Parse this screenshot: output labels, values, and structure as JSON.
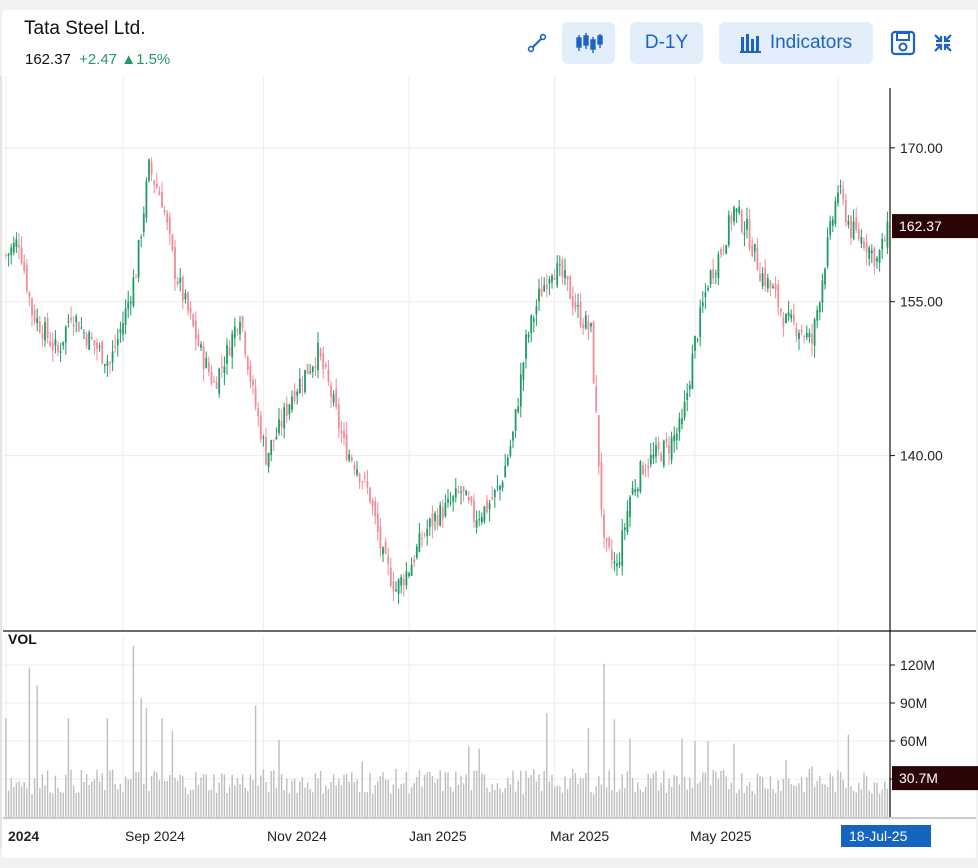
{
  "header": {
    "title": "Tata Steel Ltd.",
    "price": "162.37",
    "change": "+2.47",
    "change_pct": "1.5%",
    "change_color": "#1f9a64"
  },
  "toolbar": {
    "draw_icon": "line-draw-icon",
    "chart_type_icon": "candlestick-icon",
    "period_label": "D-1Y",
    "indicators_label": "Indicators",
    "save_icon": "save-icon",
    "collapse_icon": "collapse-icon"
  },
  "chart_data": [
    {
      "type": "candlestick",
      "title": "",
      "x_tick_labels": [
        "2024",
        "Sep 2024",
        "Nov 2024",
        "Jan 2025",
        "Mar 2025",
        "May 2025"
      ],
      "cursor_date_label": "18-Jul-25",
      "y_ticks": [
        140,
        155,
        170
      ],
      "y_tick_labels": [
        "140.00",
        "155.00",
        "170.00"
      ],
      "ylim": [
        123,
        177
      ],
      "last_price_label": "162.37",
      "last_price": 162.37,
      "up_color": "#1f9a64",
      "down_color": "#ee8c99",
      "grid": true,
      "close_path": [
        [
          0,
          159.5
        ],
        [
          5,
          161
        ],
        [
          10,
          154
        ],
        [
          15,
          152
        ],
        [
          20,
          150
        ],
        [
          25,
          154
        ],
        [
          30,
          152
        ],
        [
          35,
          150.5
        ],
        [
          40,
          149
        ],
        [
          45,
          153
        ],
        [
          50,
          158
        ],
        [
          55,
          168
        ],
        [
          60,
          165
        ],
        [
          65,
          158
        ],
        [
          70,
          154
        ],
        [
          75,
          150
        ],
        [
          80,
          147
        ],
        [
          85,
          150
        ],
        [
          90,
          154
        ],
        [
          95,
          146
        ],
        [
          100,
          140
        ],
        [
          105,
          142.5
        ],
        [
          110,
          146
        ],
        [
          115,
          148
        ],
        [
          120,
          150
        ],
        [
          125,
          146
        ],
        [
          130,
          141
        ],
        [
          135,
          139
        ],
        [
          140,
          136
        ],
        [
          145,
          130
        ],
        [
          150,
          127
        ],
        [
          155,
          129
        ],
        [
          160,
          132
        ],
        [
          165,
          134
        ],
        [
          170,
          135
        ],
        [
          175,
          136.5
        ],
        [
          180,
          134
        ],
        [
          185,
          135
        ],
        [
          190,
          137
        ],
        [
          195,
          142
        ],
        [
          200,
          151
        ],
        [
          205,
          155.5
        ],
        [
          210,
          158.5
        ],
        [
          215,
          157
        ],
        [
          220,
          154
        ],
        [
          225,
          152
        ],
        [
          230,
          131
        ],
        [
          235,
          129
        ],
        [
          240,
          136
        ],
        [
          245,
          139
        ],
        [
          250,
          140
        ],
        [
          255,
          141
        ],
        [
          260,
          143
        ],
        [
          265,
          151
        ],
        [
          270,
          157
        ],
        [
          275,
          160
        ],
        [
          280,
          164
        ],
        [
          285,
          162
        ],
        [
          290,
          158
        ],
        [
          295,
          156
        ],
        [
          300,
          153
        ],
        [
          305,
          152.5
        ],
        [
          310,
          151
        ],
        [
          315,
          159
        ],
        [
          320,
          166
        ],
        [
          325,
          162
        ],
        [
          330,
          161
        ],
        [
          335,
          159
        ],
        [
          340,
          162.4
        ]
      ],
      "volume": {
        "label": "VOL",
        "unit": "M",
        "y_ticks": [
          30,
          60,
          90,
          120
        ],
        "y_tick_labels": [
          "30M",
          "60M",
          "90M",
          "120M"
        ],
        "ylim": [
          0,
          135
        ],
        "last_label": "30.7M",
        "last_value": 30.7,
        "bar_color": "#bdbdbd",
        "spikes": [
          [
            0,
            78
          ],
          [
            9,
            118
          ],
          [
            12,
            104
          ],
          [
            24,
            78
          ],
          [
            39,
            78
          ],
          [
            49,
            135
          ],
          [
            52,
            94
          ],
          [
            54,
            86
          ],
          [
            60,
            78
          ],
          [
            64,
            68
          ],
          [
            96,
            88
          ],
          [
            105,
            61
          ],
          [
            137,
            44
          ],
          [
            178,
            56
          ],
          [
            182,
            54
          ],
          [
            208,
            82
          ],
          [
            224,
            70
          ],
          [
            230,
            121
          ],
          [
            234,
            77
          ],
          [
            240,
            62
          ],
          [
            260,
            62
          ],
          [
            265,
            60
          ],
          [
            270,
            60
          ],
          [
            280,
            58
          ],
          [
            300,
            45
          ],
          [
            310,
            40
          ],
          [
            324,
            65
          ]
        ]
      }
    }
  ]
}
